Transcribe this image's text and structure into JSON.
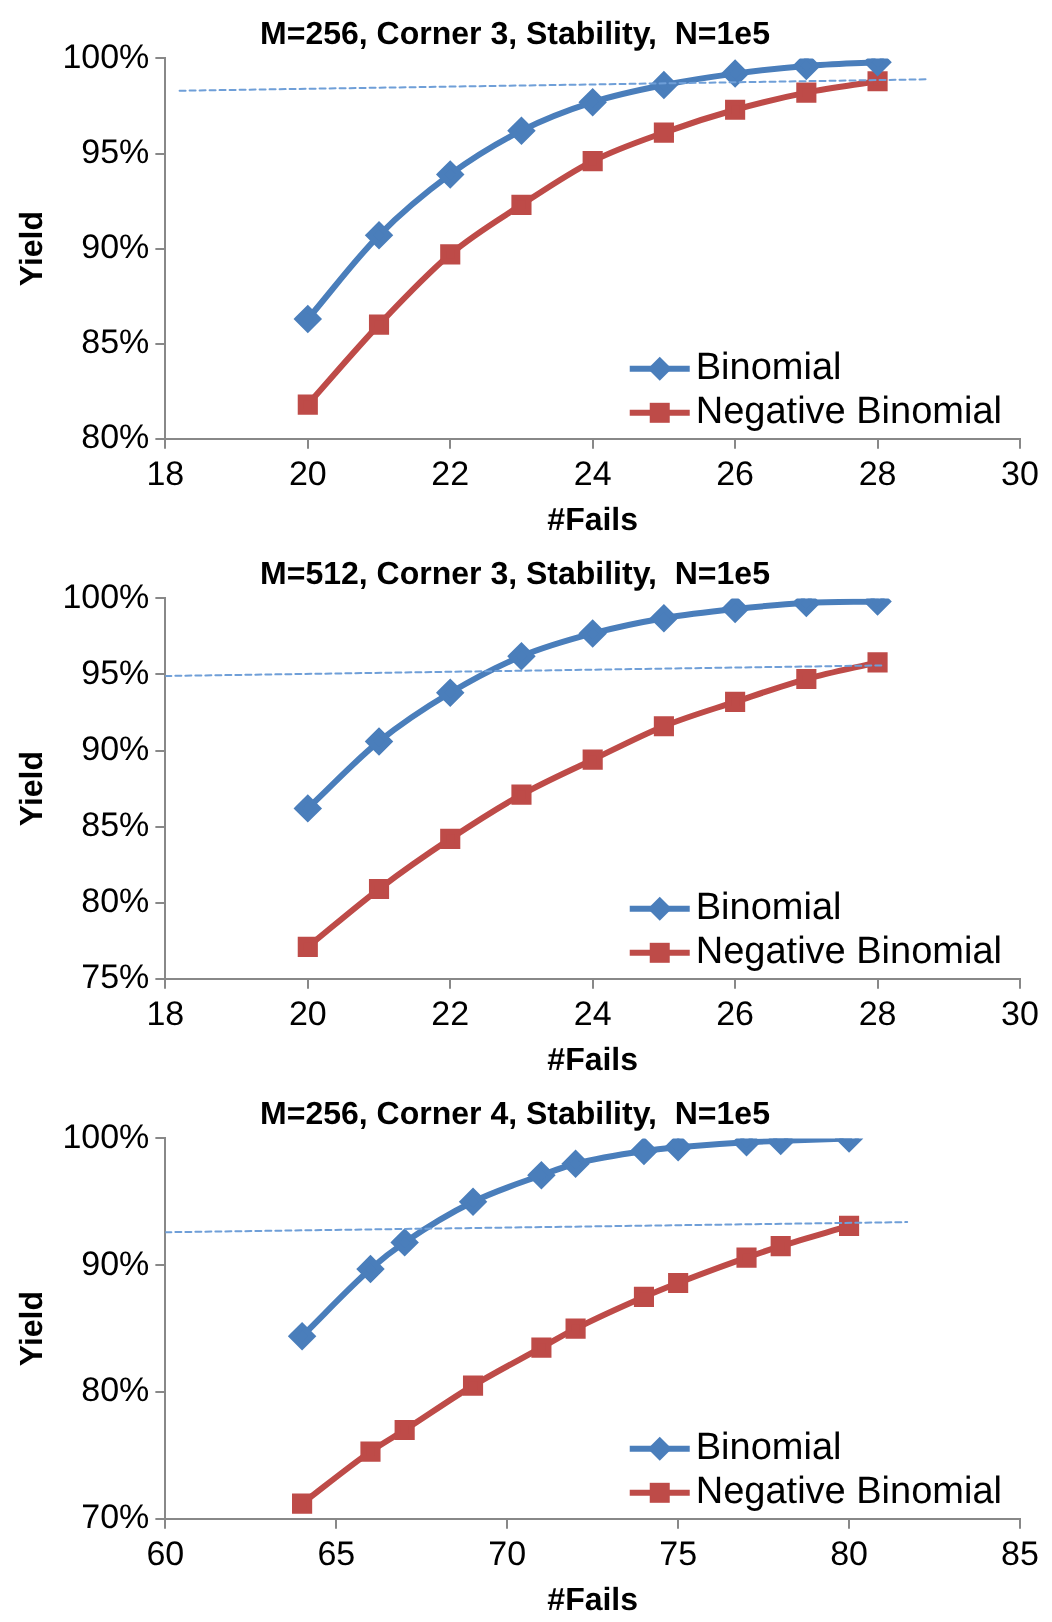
{
  "chart_data": [
    {
      "type": "line",
      "title": "M=256, Corner 3, Stability,  N=1e5",
      "xlabel": "#Fails",
      "ylabel": "Yield",
      "x": [
        20,
        21,
        22,
        23,
        24,
        25,
        26,
        27,
        28
      ],
      "xlim": [
        18,
        30
      ],
      "xticks": [
        18,
        20,
        22,
        24,
        26,
        28,
        30
      ],
      "ylim": [
        80,
        100
      ],
      "yticks": [
        {
          "value": 80,
          "label": "80%"
        },
        {
          "value": 85,
          "label": "85%"
        },
        {
          "value": 90,
          "label": "90%"
        },
        {
          "value": 95,
          "label": "95%"
        },
        {
          "value": 100,
          "label": "100%"
        }
      ],
      "grid": false,
      "legend": "bottom right",
      "series": [
        {
          "name": "Binomial",
          "color": "#4a7ebb",
          "marker": "diamond",
          "values": [
            86.3,
            90.7,
            93.9,
            96.2,
            97.7,
            98.6,
            99.2,
            99.6,
            99.8
          ]
        },
        {
          "name": "Negative Binomial",
          "color": "#be4b48",
          "marker": "square",
          "values": [
            81.8,
            86.0,
            89.7,
            92.3,
            94.6,
            96.1,
            97.3,
            98.2,
            98.8
          ]
        },
        {
          "type": "line",
          "color": "#6f9fd8",
          "marker": "none",
          "line_style": "dashed",
          "x": [
            18.2,
            28.7
          ],
          "values": [
            98.3,
            98.9
          ]
        }
      ]
    },
    {
      "type": "line",
      "title": "M=512, Corner 3, Stability,  N=1e5",
      "xlabel": "#Fails",
      "ylabel": "Yield",
      "x": [
        20,
        21,
        22,
        23,
        24,
        25,
        26,
        27,
        28
      ],
      "xlim": [
        18,
        30
      ],
      "xticks": [
        18,
        20,
        22,
        24,
        26,
        28,
        30
      ],
      "ylim": [
        75,
        100
      ],
      "yticks": [
        {
          "value": 75,
          "label": "75%"
        },
        {
          "value": 80,
          "label": "80%"
        },
        {
          "value": 85,
          "label": "85%"
        },
        {
          "value": 90,
          "label": "90%"
        },
        {
          "value": 95,
          "label": "95%"
        },
        {
          "value": 100,
          "label": "100%"
        }
      ],
      "grid": false,
      "legend": "bottom right",
      "series": [
        {
          "name": "Binomial",
          "color": "#4a7ebb",
          "marker": "diamond",
          "values": [
            86.2,
            90.6,
            93.8,
            96.2,
            97.7,
            98.7,
            99.3,
            99.7,
            99.8
          ]
        },
        {
          "name": "Negative Binomial",
          "color": "#be4b48",
          "marker": "square",
          "values": [
            77.1,
            80.9,
            84.2,
            87.1,
            89.4,
            91.6,
            93.2,
            94.7,
            95.8
          ]
        },
        {
          "type": "line",
          "color": "#6f9fd8",
          "marker": "none",
          "line_style": "dashed",
          "x": [
            18,
            28.1
          ],
          "values": [
            94.9,
            95.6
          ]
        }
      ]
    },
    {
      "type": "line",
      "title": "M=256, Corner 4, Stability,  N=1e5",
      "xlabel": "#Fails",
      "ylabel": "Yield",
      "x": [
        64,
        66,
        67,
        69,
        71,
        72,
        74,
        75,
        77,
        78,
        80
      ],
      "xlim": [
        60,
        85
      ],
      "xticks": [
        60,
        65,
        70,
        75,
        80,
        85
      ],
      "ylim": [
        70,
        100
      ],
      "yticks": [
        {
          "value": 70,
          "label": "70%"
        },
        {
          "value": 80,
          "label": "80%"
        },
        {
          "value": 90,
          "label": "90%"
        },
        {
          "value": 100,
          "label": "100%"
        }
      ],
      "grid": false,
      "legend": "bottom right",
      "series": [
        {
          "name": "Binomial",
          "color": "#4a7ebb",
          "marker": "diamond",
          "values": [
            84.4,
            89.7,
            91.8,
            95.0,
            97.1,
            98.0,
            99.0,
            99.3,
            99.7,
            99.8,
            100
          ]
        },
        {
          "name": "Negative Binomial",
          "color": "#be4b48",
          "marker": "square",
          "values": [
            71.2,
            75.3,
            77.0,
            80.5,
            83.5,
            85.0,
            87.5,
            88.6,
            90.6,
            91.5,
            93.1
          ]
        },
        {
          "type": "line",
          "color": "#6f9fd8",
          "marker": "none",
          "line_style": "dashed",
          "x": [
            60,
            81.7
          ],
          "values": [
            92.6,
            93.4
          ]
        }
      ]
    }
  ]
}
